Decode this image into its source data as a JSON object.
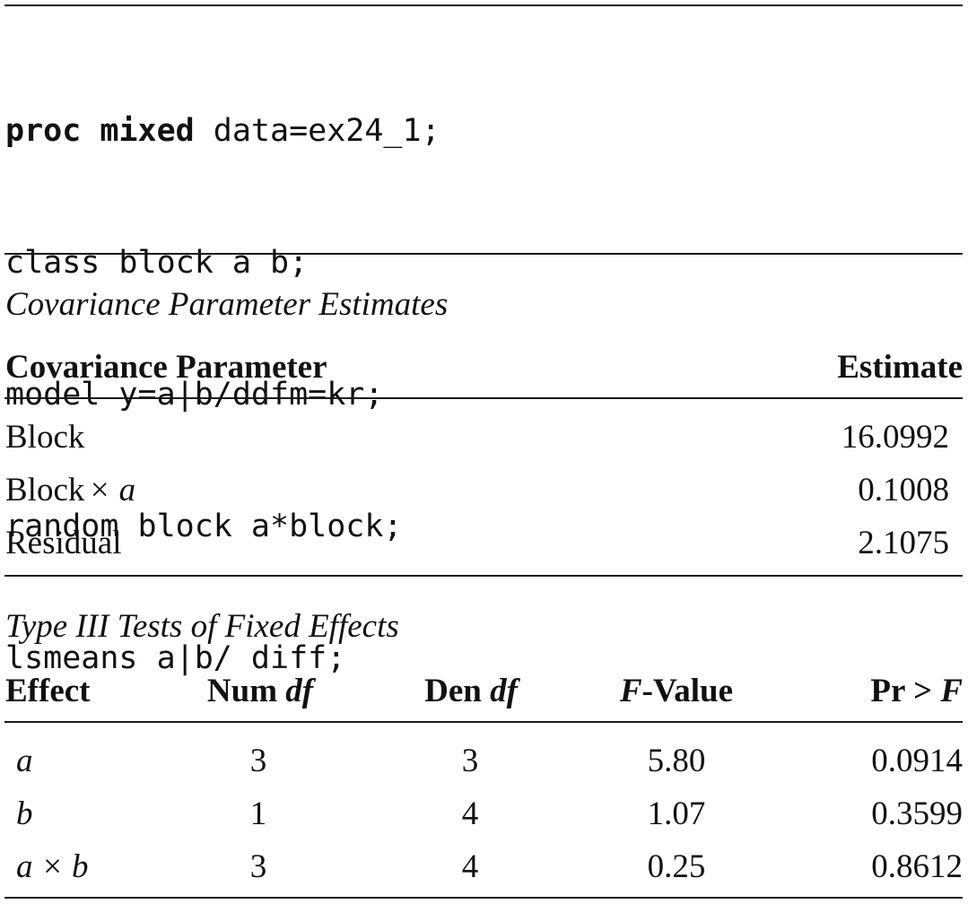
{
  "code": {
    "keyword": "proc mixed",
    "line1_rest": " data=ex24_1;",
    "line2": "class block a b;",
    "line3": "model y=a|b/ddfm=kr;",
    "line4": "random block a*block;",
    "line5": "lsmeans a|b/ diff;"
  },
  "cov_table": {
    "caption": "Covariance Parameter Estimates",
    "col_param": "Covariance Parameter",
    "col_estimate": "Estimate",
    "rows": [
      {
        "param": "Block",
        "param_suffix": "",
        "estimate": "16.0992"
      },
      {
        "param": "Block",
        "param_suffix": "× a",
        "estimate": "0.1008"
      },
      {
        "param": "Residual",
        "param_suffix": "",
        "estimate": "2.1075"
      }
    ]
  },
  "fixed_table": {
    "caption": "Type III Tests of Fixed Effects",
    "col_effect": "Effect",
    "col_numdf_a": "Num ",
    "col_numdf_b": "df",
    "col_dendf_a": "Den ",
    "col_dendf_b": "df",
    "col_f_a": "F",
    "col_f_b": "-Value",
    "col_p_a": "Pr > ",
    "col_p_b": "F",
    "rows": [
      {
        "effect": "a",
        "numdf": "3",
        "dendf": "3",
        "fvalue": "5.80",
        "p": "0.0914"
      },
      {
        "effect": "b",
        "numdf": "1",
        "dendf": "4",
        "fvalue": "1.07",
        "p": "0.3599"
      },
      {
        "effect": "a × b",
        "numdf": "3",
        "dendf": "4",
        "fvalue": "0.25",
        "p": "0.8612"
      }
    ]
  }
}
